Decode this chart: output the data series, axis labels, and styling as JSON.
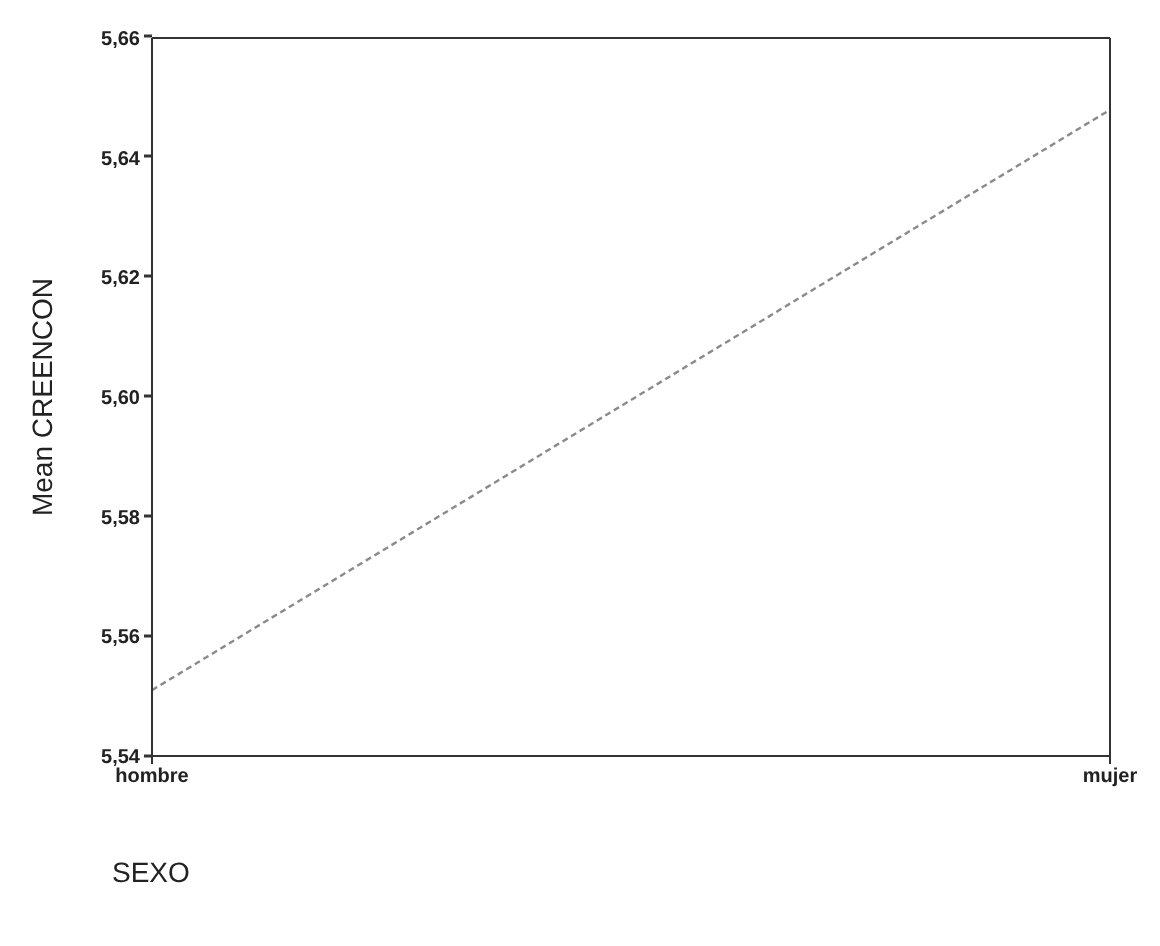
{
  "chart_data": {
    "type": "line",
    "categories": [
      "hombre",
      "mujer"
    ],
    "series": [
      {
        "color": "#8a8a8a",
        "values": [
          5.551,
          5.648
        ]
      }
    ],
    "ylim": [
      5.54,
      5.66
    ],
    "yticks": [
      {
        "value": 5.54,
        "label": "5,54"
      },
      {
        "value": 5.56,
        "label": "5,56"
      },
      {
        "value": 5.58,
        "label": "5,58"
      },
      {
        "value": 5.6,
        "label": "5,60"
      },
      {
        "value": 5.62,
        "label": "5,62"
      },
      {
        "value": 5.64,
        "label": "5,64"
      },
      {
        "value": 5.66,
        "label": "5,66"
      }
    ],
    "ylabel": "Mean CREENCON",
    "xlabel": "SEXO",
    "line_style": "dashed",
    "marker": "none",
    "grid": "x",
    "legend": false
  }
}
